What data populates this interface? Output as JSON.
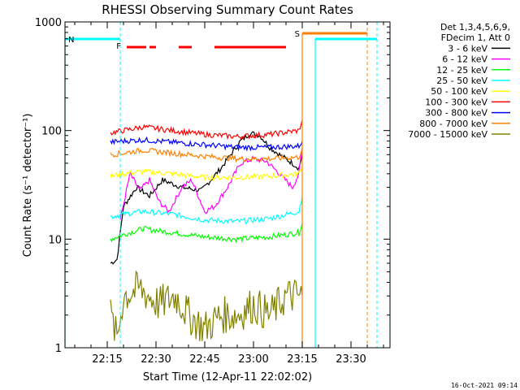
{
  "chart_data": {
    "type": "line",
    "title": "RHESSI Observing Summary Count Rates",
    "xlabel": "Start Time (12-Apr-11 22:02:02)",
    "ylabel": "Count Rate (s⁻¹ detector⁻¹)",
    "yscale": "log",
    "ylim": [
      1,
      1000
    ],
    "xlim": [
      "22:02",
      "23:42"
    ],
    "x_ticks": [
      "22:15",
      "22:30",
      "22:45",
      "23:00",
      "23:15",
      "23:30"
    ],
    "y_ticks": [
      "1",
      "10",
      "100",
      "1000"
    ],
    "timestamp": "16-Oct-2021 09:14",
    "legend_header": [
      "Det 1,3,4,5,6,9,",
      "FDecim 1, Att 0"
    ],
    "grid": false,
    "legend_position": "outside-right",
    "series": [
      {
        "name": "3 - 6 keV",
        "color": "#000000",
        "x": [
          "22:16",
          "22:18",
          "22:20",
          "22:24",
          "22:28",
          "22:32",
          "22:38",
          "22:44",
          "22:50",
          "22:56",
          "22:59",
          "23:02",
          "23:05",
          "23:08",
          "23:12",
          "23:14",
          "23:15"
        ],
        "values": [
          6,
          6.5,
          20,
          30,
          25,
          35,
          30,
          28,
          45,
          80,
          95,
          90,
          70,
          60,
          50,
          45,
          60
        ]
      },
      {
        "name": "6 - 12 keV",
        "color": "#ff00ff",
        "x": [
          "22:19",
          "22:22",
          "22:25",
          "22:28",
          "22:31",
          "22:34",
          "22:38",
          "22:41",
          "22:45",
          "22:48",
          "22:52",
          "22:56",
          "23:00",
          "23:04",
          "23:08",
          "23:12",
          "23:14",
          "23:15"
        ],
        "values": [
          15,
          40,
          28,
          35,
          22,
          18,
          30,
          35,
          18,
          20,
          30,
          50,
          55,
          52,
          40,
          30,
          40,
          70
        ]
      },
      {
        "name": "12 - 25 keV",
        "color": "#00ff00",
        "x": [
          "22:16",
          "22:20",
          "22:26",
          "22:35",
          "22:45",
          "22:55",
          "23:05",
          "23:14",
          "23:15"
        ],
        "values": [
          10,
          11,
          12.5,
          11.5,
          10.5,
          10,
          10.5,
          11.5,
          14
        ]
      },
      {
        "name": "25 - 50 keV",
        "color": "#00ffff",
        "x": [
          "22:16",
          "22:20",
          "22:26",
          "22:35",
          "22:45",
          "22:55",
          "23:05",
          "23:14",
          "23:15"
        ],
        "values": [
          16,
          17,
          18,
          17,
          15,
          14.5,
          15.5,
          18,
          25
        ]
      },
      {
        "name": "50 - 100 keV",
        "color": "#ffff00",
        "x": [
          "22:16",
          "22:20",
          "22:26",
          "22:35",
          "22:45",
          "22:55",
          "23:05",
          "23:14",
          "23:15"
        ],
        "values": [
          38,
          40,
          42,
          40,
          37,
          37,
          38,
          40,
          48
        ]
      },
      {
        "name": "100 - 300 keV",
        "color": "#ff0000",
        "x": [
          "22:16",
          "22:20",
          "22:26",
          "22:35",
          "22:45",
          "22:55",
          "23:05",
          "23:14",
          "23:15"
        ],
        "values": [
          95,
          100,
          108,
          100,
          92,
          88,
          92,
          100,
          125
        ]
      },
      {
        "name": "300 - 800 keV",
        "color": "#0000ff",
        "x": [
          "22:16",
          "22:20",
          "22:26",
          "22:35",
          "22:45",
          "22:55",
          "23:05",
          "23:14",
          "23:15"
        ],
        "values": [
          78,
          80,
          82,
          78,
          74,
          70,
          70,
          72,
          80
        ]
      },
      {
        "name": "800 - 7000 keV",
        "color": "#ff8000",
        "x": [
          "22:16",
          "22:20",
          "22:26",
          "22:35",
          "22:45",
          "22:55",
          "23:05",
          "23:14",
          "23:15"
        ],
        "values": [
          60,
          62,
          66,
          62,
          58,
          55,
          55,
          57,
          68
        ]
      },
      {
        "name": "7000 - 15000 keV",
        "color": "#808000",
        "x": [
          "22:16",
          "22:18",
          "22:20",
          "22:25",
          "22:31",
          "22:36",
          "22:40",
          "22:45",
          "22:50",
          "22:55",
          "23:00",
          "23:05",
          "23:10",
          "23:15"
        ],
        "values": [
          2,
          1.2,
          3,
          3.5,
          2.5,
          3,
          2,
          1.5,
          2,
          2,
          2.5,
          2,
          3,
          3
        ]
      }
    ],
    "annotations": [
      {
        "label": "N",
        "color": "#00ffff",
        "x_range": [
          "22:02",
          "22:19"
        ],
        "dashed_x": "22:19"
      },
      {
        "label": "S",
        "color": "#ff8000",
        "x_range": [
          "23:15",
          "23:35"
        ],
        "dashed_x": "23:35"
      },
      {
        "label": "F",
        "color": "#ff0000",
        "x_range": [
          "22:20",
          "23:10"
        ]
      },
      {
        "label": "",
        "color": "#00ffff",
        "x_range": [
          "23:19",
          "23:38"
        ],
        "dashed_x": "23:38"
      }
    ],
    "flare_segments": [
      [
        "22:21",
        "22:27"
      ],
      [
        "22:28",
        "22:30"
      ],
      [
        "22:37",
        "22:41"
      ],
      [
        "22:48",
        "23:10"
      ]
    ]
  }
}
